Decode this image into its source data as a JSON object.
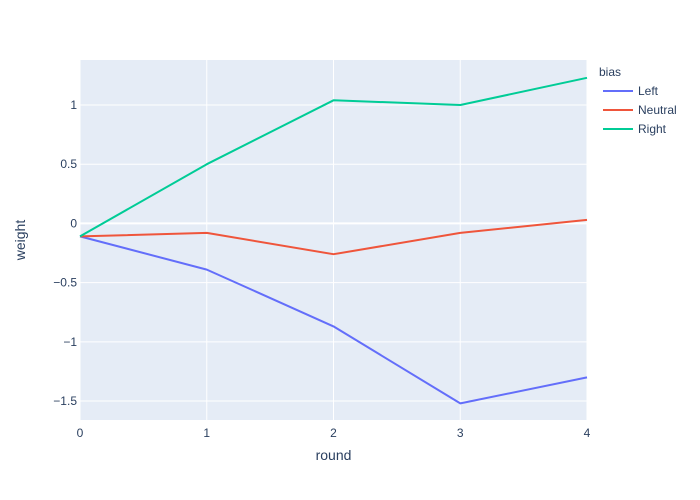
{
  "chart_data": {
    "type": "line",
    "title": "",
    "xlabel": "round",
    "ylabel": "weight",
    "x": [
      0,
      1,
      2,
      3,
      4
    ],
    "xlim": [
      0,
      4
    ],
    "ylim": [
      -1.66,
      1.38
    ],
    "x_ticks": [
      0,
      1,
      2,
      3,
      4
    ],
    "x_tick_labels": [
      "0",
      "1",
      "2",
      "3",
      "4"
    ],
    "y_ticks": [
      -1.5,
      -1,
      -0.5,
      0,
      0.5,
      1
    ],
    "y_tick_labels": [
      "−1.5",
      "−1",
      "−0.5",
      "0",
      "0.5",
      "1"
    ],
    "grid": true,
    "legend": {
      "title": "bias",
      "placement": "top-right-outside"
    },
    "series": [
      {
        "name": "Left",
        "color": "#636efa",
        "values": [
          -0.11,
          -0.39,
          -0.87,
          -1.52,
          -1.3
        ]
      },
      {
        "name": "Neutral",
        "color": "#ef553b",
        "values": [
          -0.11,
          -0.08,
          -0.26,
          -0.08,
          0.03
        ]
      },
      {
        "name": "Right",
        "color": "#00cc96",
        "values": [
          -0.11,
          0.5,
          1.04,
          1.0,
          1.23
        ]
      }
    ],
    "colors": {
      "plot_background": "#e5ecf6",
      "gridline": "#ffffff",
      "text": "#2a3f5f"
    }
  }
}
